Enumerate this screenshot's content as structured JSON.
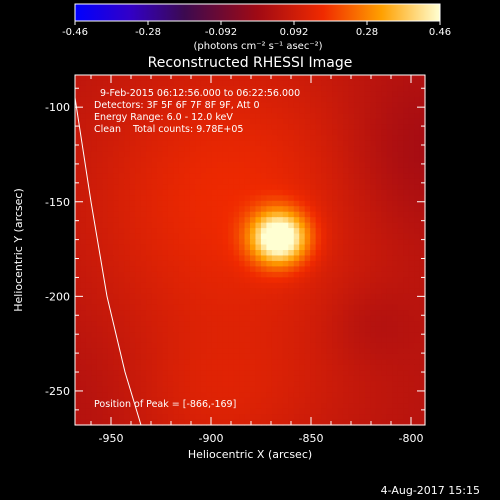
{
  "chart_data": {
    "type": "heatmap",
    "title": "Reconstructed RHESSI Image",
    "xlabel": "Heliocentric X (arcsec)",
    "ylabel": "Heliocentric Y (arcsec)",
    "xlim": [
      -968,
      -793
    ],
    "ylim": [
      -268,
      -83
    ],
    "xticks": [
      -950,
      -900,
      -850,
      -800
    ],
    "yticks": [
      -100,
      -150,
      -200,
      -250
    ],
    "colorbar": {
      "label": "(photons cm⁻² s⁻¹ asec⁻²)",
      "min": -0.46,
      "max": 0.46,
      "ticks": [
        "-0.46",
        "-0.28",
        "-0.092",
        "0.092",
        "0.28",
        "0.46"
      ]
    },
    "annotations": [
      "9-Feb-2015 06:12:56.000 to 06:22:56.000",
      "Detectors: 3F 5F 6F 7F 8F 9F, Att 0",
      "Energy Range: 6.0 - 12.0 keV",
      "Clean    Total counts: 9.78E+05"
    ],
    "peak_label": "Position of Peak = [-866,-169]",
    "peak": {
      "x": -866,
      "y": -169,
      "value": 0.46
    },
    "blobs": [
      {
        "x": -866,
        "y": -169,
        "sx": 10,
        "sy": 10,
        "amp": 0.42
      },
      {
        "x": -890,
        "y": -150,
        "sx": 55,
        "sy": 60,
        "amp": 0.12
      },
      {
        "x": -905,
        "y": -258,
        "sx": 50,
        "sy": 30,
        "amp": 0.07
      },
      {
        "x": -820,
        "y": -215,
        "sx": 15,
        "sy": 15,
        "amp": -0.03
      },
      {
        "x": -955,
        "y": -255,
        "sx": 30,
        "sy": 30,
        "amp": -0.04
      },
      {
        "x": -800,
        "y": -125,
        "sx": 25,
        "sy": 30,
        "amp": -0.05
      }
    ],
    "background": 0.04,
    "limb": [
      [
        -968,
        -95
      ],
      [
        -960,
        -150
      ],
      [
        -952,
        -200
      ],
      [
        -943,
        -240
      ],
      [
        -935,
        -268
      ]
    ]
  },
  "footer_date": "4-Aug-2017 15:15"
}
